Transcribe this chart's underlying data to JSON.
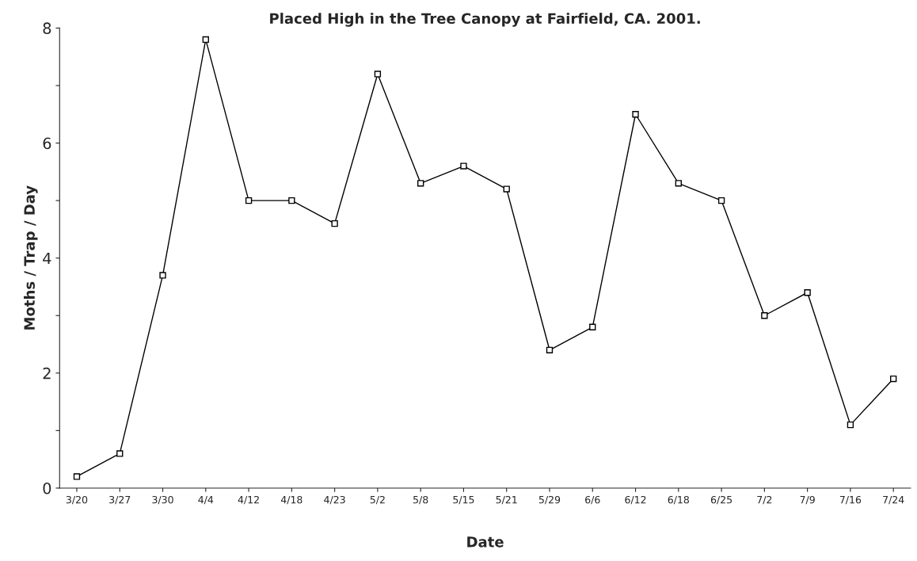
{
  "chart_data": {
    "type": "line",
    "title": "Placed High in the Tree Canopy at Fairfield, CA. 2001.",
    "xlabel": "Date",
    "ylabel": "Moths / Trap / Day",
    "categories": [
      "3/20",
      "3/27",
      "3/30",
      "4/4",
      "4/12",
      "4/18",
      "4/23",
      "5/2",
      "5/8",
      "5/15",
      "5/21",
      "5/29",
      "6/6",
      "6/12",
      "6/18",
      "6/25",
      "7/2",
      "7/9",
      "7/16",
      "7/24"
    ],
    "series": [
      {
        "color": "#000000",
        "values": [
          0.2,
          0.6,
          3.7,
          7.8,
          5.0,
          5.0,
          4.6,
          7.2,
          5.3,
          5.6,
          5.2,
          2.4,
          2.8,
          6.5,
          5.3,
          5.0,
          3.0,
          3.4,
          1.1,
          1.9
        ]
      }
    ],
    "ylim": [
      0,
      8
    ],
    "yticks": [
      0,
      {
        "value": 1,
        "label": null
      },
      2,
      {
        "value": 3,
        "label": null
      },
      4,
      {
        "value": 5,
        "label": null
      },
      6,
      {
        "value": 7,
        "label": null
      },
      8
    ],
    "grid": false,
    "legend": false,
    "marker": "square",
    "line_style": "solid"
  }
}
